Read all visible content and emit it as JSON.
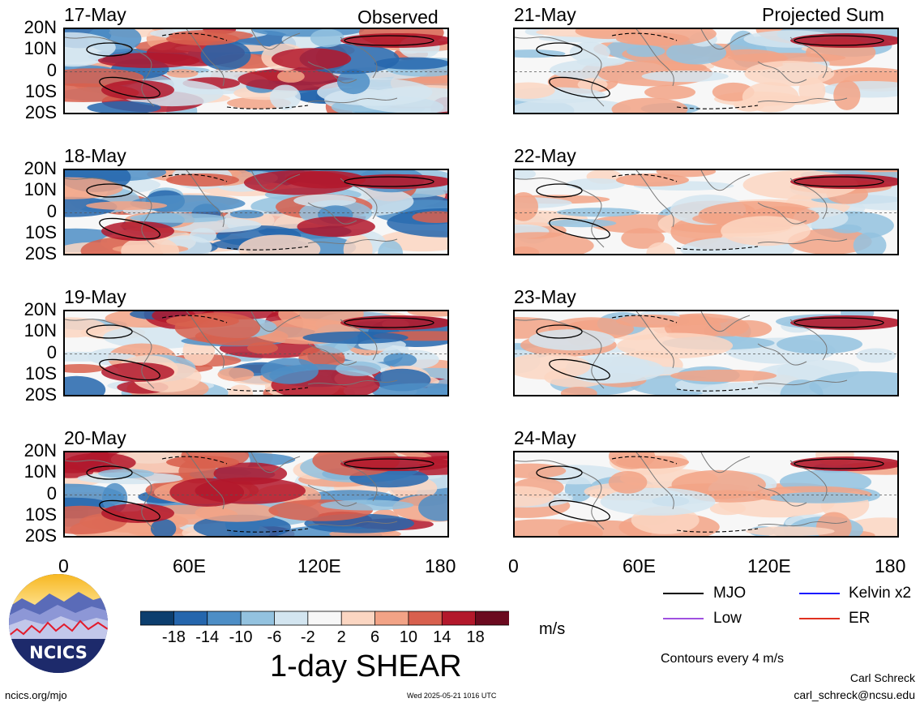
{
  "headers": {
    "left": "Observed",
    "right": "Projected Sum"
  },
  "panels": {
    "observed": [
      {
        "date": "17-May"
      },
      {
        "date": "18-May"
      },
      {
        "date": "19-May"
      },
      {
        "date": "20-May"
      }
    ],
    "projected": [
      {
        "date": "21-May"
      },
      {
        "date": "22-May"
      },
      {
        "date": "23-May"
      },
      {
        "date": "24-May"
      }
    ]
  },
  "axes": {
    "lat_labels": [
      "20N",
      "10N",
      "0",
      "10S",
      "20S"
    ],
    "lon_labels": [
      "0",
      "60E",
      "120E",
      "180"
    ]
  },
  "colorbar": {
    "title": "1-day SHEAR",
    "units": "m/s",
    "tick_labels": [
      "-18",
      "-14",
      "-10",
      "-6",
      "-2",
      "2",
      "6",
      "10",
      "14",
      "18"
    ],
    "colors": [
      "#0c3e6e",
      "#2566ad",
      "#4d8ec6",
      "#93c2df",
      "#d3e5f0",
      "#f7f7f7",
      "#fbd6c2",
      "#f2a386",
      "#d8604e",
      "#b3182b",
      "#6b0a1f"
    ]
  },
  "legend": {
    "items": [
      {
        "label": "MJO",
        "color": "#000000"
      },
      {
        "label": "Kelvin x2",
        "color": "#1a1aff"
      },
      {
        "label": "Low",
        "color": "#a050e0"
      },
      {
        "label": "ER",
        "color": "#e03020"
      }
    ],
    "contour_note": "Contours every 4 m/s"
  },
  "logo": {
    "text": "NCICS"
  },
  "footer": {
    "url": "ncics.org/mjo",
    "timestamp": "Wed 2025-05-21 1016 UTC",
    "author": "Carl Schreck",
    "email": "carl_schreck@ncsu.edu"
  }
}
